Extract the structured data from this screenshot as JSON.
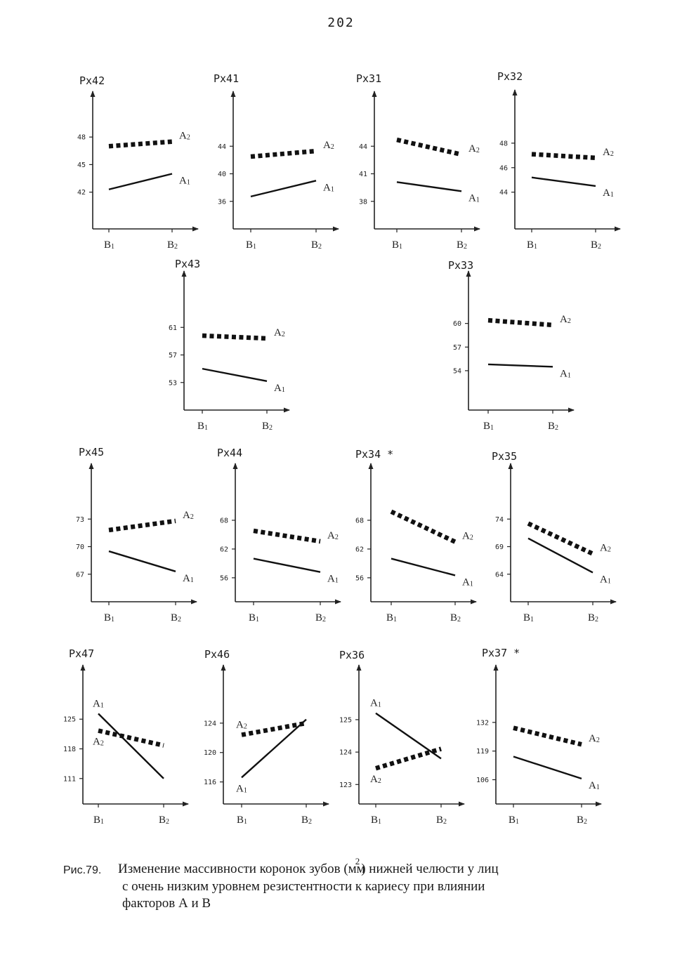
{
  "page_number": "202",
  "caption": {
    "figure_label": "Рис.79.",
    "line1_a": "Изменение массивности коронок зубов (мм",
    "line1_sup": "2",
    "line1_b": ") нижней челюсти  у лиц",
    "line2": "с очень низким уровнем резистентности к кариесу при влиянии",
    "line3": "факторов А и В"
  },
  "chart_data": [
    {
      "type": "line",
      "title": "Px42",
      "categories": [
        "B1",
        "B2"
      ],
      "ylim": [
        38,
        50
      ],
      "yticks": [
        42,
        45,
        48
      ],
      "series": [
        {
          "name": "A2",
          "style": "dotted",
          "values": [
            47.0,
            47.5
          ]
        },
        {
          "name": "A1",
          "style": "solid",
          "values": [
            42.3,
            44.0
          ]
        }
      ]
    },
    {
      "type": "line",
      "title": "Px41",
      "categories": [
        "B1",
        "B2"
      ],
      "ylim": [
        32,
        48
      ],
      "yticks": [
        36,
        40,
        44
      ],
      "series": [
        {
          "name": "A2",
          "style": "dotted",
          "values": [
            42.5,
            43.3
          ]
        },
        {
          "name": "A1",
          "style": "solid",
          "values": [
            36.7,
            39.0
          ]
        }
      ]
    },
    {
      "type": "line",
      "title": "Px31",
      "categories": [
        "B1",
        "B2"
      ],
      "ylim": [
        35,
        47
      ],
      "yticks": [
        38,
        41,
        44
      ],
      "series": [
        {
          "name": "A2",
          "style": "dotted",
          "values": [
            44.7,
            43.1
          ]
        },
        {
          "name": "A1",
          "style": "solid",
          "values": [
            40.1,
            39.1
          ]
        }
      ]
    },
    {
      "type": "line",
      "title": "Px32",
      "categories": [
        "B1",
        "B2"
      ],
      "ylim": [
        41,
        50
      ],
      "yticks": [
        44,
        46,
        48
      ],
      "series": [
        {
          "name": "A2",
          "style": "dotted",
          "values": [
            47.1,
            46.8
          ]
        },
        {
          "name": "A1",
          "style": "solid",
          "values": [
            45.2,
            44.5
          ]
        }
      ]
    },
    {
      "type": "line",
      "title": "Px43",
      "categories": [
        "B1",
        "B2"
      ],
      "ylim": [
        49,
        65
      ],
      "yticks": [
        53,
        57,
        61
      ],
      "series": [
        {
          "name": "A2",
          "style": "dotted",
          "values": [
            59.8,
            59.4
          ]
        },
        {
          "name": "A1",
          "style": "solid",
          "values": [
            55.0,
            53.2
          ]
        }
      ]
    },
    {
      "type": "line",
      "title": "Px33",
      "categories": [
        "B1",
        "B2"
      ],
      "ylim": [
        49,
        63
      ],
      "yticks": [
        54,
        57,
        60
      ],
      "series": [
        {
          "name": "A2",
          "style": "dotted",
          "values": [
            60.4,
            59.8
          ]
        },
        {
          "name": "A1",
          "style": "solid",
          "values": [
            54.8,
            54.5
          ]
        }
      ]
    },
    {
      "type": "line",
      "title": "Px45",
      "categories": [
        "B1",
        "B2"
      ],
      "ylim": [
        64,
        76
      ],
      "yticks": [
        67,
        70,
        73
      ],
      "series": [
        {
          "name": "A2",
          "style": "dotted",
          "values": [
            71.8,
            72.8
          ]
        },
        {
          "name": "A1",
          "style": "solid",
          "values": [
            69.5,
            67.3
          ]
        }
      ]
    },
    {
      "type": "line",
      "title": "Px44",
      "categories": [
        "B1",
        "B2"
      ],
      "ylim": [
        51,
        74
      ],
      "yticks": [
        56,
        62,
        68
      ],
      "series": [
        {
          "name": "A2",
          "style": "dotted",
          "values": [
            65.8,
            63.6
          ]
        },
        {
          "name": "A1",
          "style": "solid",
          "values": [
            60.0,
            57.2
          ]
        }
      ]
    },
    {
      "type": "line",
      "title": "Px34 *",
      "categories": [
        "B1",
        "B2"
      ],
      "ylim": [
        51,
        74
      ],
      "yticks": [
        56,
        62,
        68
      ],
      "series": [
        {
          "name": "A2",
          "style": "dotted",
          "values": [
            69.8,
            63.5
          ]
        },
        {
          "name": "A1",
          "style": "solid",
          "values": [
            60.0,
            56.5
          ]
        }
      ]
    },
    {
      "type": "line",
      "title": "Px35",
      "categories": [
        "B1",
        "B2"
      ],
      "ylim": [
        59,
        79
      ],
      "yticks": [
        64,
        69,
        74
      ],
      "series": [
        {
          "name": "A2",
          "style": "dotted",
          "values": [
            73.2,
            67.7
          ]
        },
        {
          "name": "A1",
          "style": "solid",
          "values": [
            70.5,
            64.3
          ]
        }
      ]
    },
    {
      "type": "line",
      "title": "Px47",
      "categories": [
        "B1",
        "B2"
      ],
      "ylim": [
        105,
        131
      ],
      "yticks": [
        111,
        118,
        125
      ],
      "series": [
        {
          "name": "A2",
          "style": "dotted",
          "values": [
            122.3,
            118.8
          ]
        },
        {
          "name": "A1",
          "style": "solid",
          "values": [
            126.3,
            111.0
          ]
        }
      ]
    },
    {
      "type": "line",
      "title": "Px46",
      "categories": [
        "B1",
        "B2"
      ],
      "ylim": [
        113,
        128
      ],
      "yticks": [
        116,
        120,
        124
      ],
      "series": [
        {
          "name": "A2",
          "style": "dotted",
          "values": [
            122.4,
            124.0
          ]
        },
        {
          "name": "A1",
          "style": "solid",
          "values": [
            116.6,
            124.5
          ]
        }
      ]
    },
    {
      "type": "line",
      "title": "Px36",
      "categories": [
        "B1",
        "B2"
      ],
      "ylim": [
        122.4,
        125.8
      ],
      "yticks": [
        123,
        124,
        125
      ],
      "series": [
        {
          "name": "A2",
          "style": "dotted",
          "values": [
            123.5,
            124.1
          ]
        },
        {
          "name": "A1",
          "style": "solid",
          "values": [
            125.2,
            123.8
          ]
        }
      ]
    },
    {
      "type": "line",
      "title": "Px37 *",
      "categories": [
        "B1",
        "B2"
      ],
      "ylim": [
        95,
        145
      ],
      "yticks": [
        106,
        119,
        132
      ],
      "series": [
        {
          "name": "A2",
          "style": "dotted",
          "values": [
            129.5,
            122.0
          ]
        },
        {
          "name": "A1",
          "style": "solid",
          "values": [
            116.5,
            106.5
          ]
        }
      ]
    }
  ]
}
